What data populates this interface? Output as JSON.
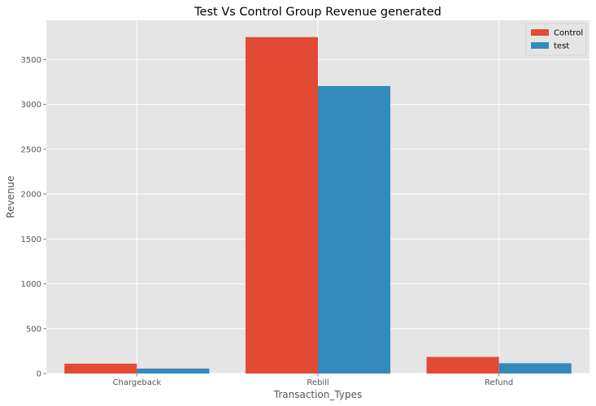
{
  "chart_data": {
    "type": "bar",
    "title": "Test Vs Control Group Revenue generated",
    "xlabel": "Transaction_Types",
    "ylabel": "Revenue",
    "categories": [
      "Chargeback",
      "Rebill",
      "Refund"
    ],
    "series": [
      {
        "name": "Control",
        "values": [
          110,
          3750,
          185
        ],
        "color": "#E24A33"
      },
      {
        "name": "test",
        "values": [
          55,
          3205,
          115
        ],
        "color": "#348ABD"
      }
    ],
    "ylim": [
      0,
      3937.5
    ],
    "yticks": [
      0,
      500,
      1000,
      1500,
      2000,
      2500,
      3000,
      3500
    ],
    "grid": true,
    "legend_position": "top-right",
    "plot_background": "#E5E5E5",
    "grid_color": "#FFFFFF"
  }
}
